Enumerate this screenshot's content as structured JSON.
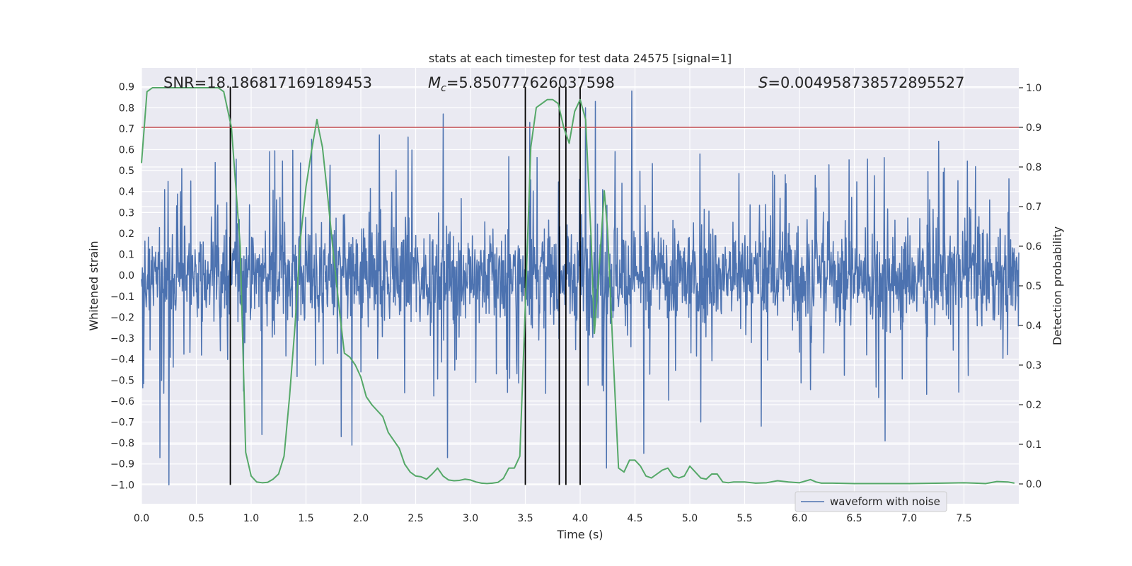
{
  "chart_data": {
    "type": "line",
    "title": "stats at each timestep for test data 24575 [signal=1]",
    "xlabel": "Time (s)",
    "ylabel": "Whitened strain",
    "y2label": "Detection probability",
    "xlim": [
      0.0,
      8.0
    ],
    "ylim": [
      -1.09,
      0.99
    ],
    "y2lim": [
      -0.05,
      1.05
    ],
    "xticks": [
      0.0,
      0.5,
      1.0,
      1.5,
      2.0,
      2.5,
      3.0,
      3.5,
      4.0,
      4.5,
      5.0,
      5.5,
      6.0,
      6.5,
      7.0,
      7.5
    ],
    "xtick_labels": [
      "0.0",
      "0.5",
      "1.0",
      "1.5",
      "2.0",
      "2.5",
      "3.0",
      "3.5",
      "4.0",
      "4.5",
      "5.0",
      "5.5",
      "6.0",
      "6.5",
      "7.0",
      "7.5"
    ],
    "yticks": [
      0.9,
      0.8,
      0.7,
      0.6,
      0.5,
      0.4,
      0.3,
      0.2,
      0.1,
      0.0,
      -0.1,
      -0.2,
      -0.3,
      -0.4,
      -0.5,
      -0.6,
      -0.7,
      -0.8,
      -0.9,
      -1.0
    ],
    "ytick_labels": [
      "0.9",
      "0.8",
      "0.7",
      "0.6",
      "0.5",
      "0.4",
      "0.3",
      "0.2",
      "0.1",
      "0.0",
      "−0.1",
      "−0.2",
      "−0.3",
      "−0.4",
      "−0.5",
      "−0.6",
      "−0.7",
      "−0.8",
      "−0.9",
      "−1.0"
    ],
    "y2ticks": [
      1.0,
      0.9,
      0.8,
      0.7,
      0.6,
      0.5,
      0.4,
      0.3,
      0.2,
      0.1,
      0.0
    ],
    "y2tick_labels": [
      "1.0",
      "0.9",
      "0.8",
      "0.7",
      "0.6",
      "0.5",
      "0.4",
      "0.3",
      "0.2",
      "0.1",
      "0.0"
    ],
    "annotations": {
      "snr_text": "SNR=18.186817169189453",
      "mc_symbol": "M",
      "mc_subscript": "c",
      "mc_value": "=5.850777626037598",
      "s_symbol": "S",
      "s_value": "=0.004958738572895527"
    },
    "threshold": {
      "value": 0.9,
      "axis": "y2",
      "color": "#c44e52"
    },
    "vertical_lines": {
      "x": [
        0.81,
        3.5,
        3.81,
        3.87,
        4.0
      ],
      "y_range": [
        -1.0,
        0.9
      ],
      "color": "#000000"
    },
    "legend": {
      "entries": [
        "waveform with noise"
      ],
      "location": "lower-right"
    },
    "waveform": {
      "name": "waveform with noise",
      "color": "#4c72b0",
      "t_start": 0.0,
      "t_end": 8.0,
      "samples": 2048,
      "envelope_typical": 0.5,
      "spikes": [
        {
          "t": 0.17,
          "y": -0.87
        },
        {
          "t": 0.25,
          "y": -1.0
        },
        {
          "t": 1.1,
          "y": -0.76
        },
        {
          "t": 1.55,
          "y": 0.65
        },
        {
          "t": 1.82,
          "y": -0.77
        },
        {
          "t": 1.92,
          "y": -0.81
        },
        {
          "t": 2.17,
          "y": 0.67
        },
        {
          "t": 2.43,
          "y": 0.66
        },
        {
          "t": 2.75,
          "y": 0.77
        },
        {
          "t": 2.79,
          "y": -0.87
        },
        {
          "t": 3.54,
          "y": 0.73
        },
        {
          "t": 4.05,
          "y": 0.8
        },
        {
          "t": 4.14,
          "y": 0.83
        },
        {
          "t": 4.24,
          "y": -0.92
        },
        {
          "t": 4.47,
          "y": 0.88
        },
        {
          "t": 4.58,
          "y": -0.85
        },
        {
          "t": 5.1,
          "y": -0.7
        },
        {
          "t": 5.65,
          "y": -0.72
        },
        {
          "t": 6.78,
          "y": -0.79
        },
        {
          "t": 7.27,
          "y": 0.64
        }
      ]
    },
    "series": [
      {
        "name": "detection probability",
        "axis": "y2",
        "color": "#55a868",
        "x": [
          0.0,
          0.05,
          0.1,
          0.15,
          0.2,
          0.3,
          0.4,
          0.5,
          0.6,
          0.7,
          0.75,
          0.82,
          0.9,
          0.95,
          1.0,
          1.05,
          1.1,
          1.15,
          1.2,
          1.25,
          1.3,
          1.35,
          1.4,
          1.45,
          1.5,
          1.55,
          1.6,
          1.62,
          1.65,
          1.7,
          1.75,
          1.8,
          1.85,
          1.9,
          1.95,
          2.0,
          2.05,
          2.1,
          2.2,
          2.25,
          2.3,
          2.35,
          2.4,
          2.45,
          2.5,
          2.55,
          2.6,
          2.65,
          2.7,
          2.75,
          2.8,
          2.85,
          2.9,
          2.95,
          3.0,
          3.05,
          3.1,
          3.15,
          3.2,
          3.25,
          3.3,
          3.35,
          3.4,
          3.45,
          3.5,
          3.55,
          3.6,
          3.65,
          3.7,
          3.75,
          3.8,
          3.85,
          3.9,
          3.95,
          4.0,
          4.05,
          4.1,
          4.13,
          4.18,
          4.22,
          4.25,
          4.3,
          4.35,
          4.4,
          4.45,
          4.5,
          4.55,
          4.6,
          4.65,
          4.7,
          4.75,
          4.8,
          4.85,
          4.9,
          4.95,
          5.0,
          5.05,
          5.1,
          5.15,
          5.2,
          5.25,
          5.3,
          5.35,
          5.4,
          5.45,
          5.5,
          5.6,
          5.7,
          5.8,
          5.9,
          6.0,
          6.1,
          6.15,
          6.2,
          6.3,
          6.5,
          6.7,
          7.0,
          7.3,
          7.5,
          7.6,
          7.7,
          7.8,
          7.9,
          7.96
        ],
        "y": [
          0.81,
          0.99,
          1.0,
          1.0,
          1.0,
          1.0,
          1.0,
          1.0,
          1.0,
          1.0,
          0.99,
          0.9,
          0.6,
          0.08,
          0.02,
          0.005,
          0.003,
          0.004,
          0.012,
          0.025,
          0.07,
          0.22,
          0.4,
          0.62,
          0.75,
          0.84,
          0.92,
          0.89,
          0.85,
          0.72,
          0.58,
          0.45,
          0.33,
          0.32,
          0.3,
          0.27,
          0.22,
          0.2,
          0.17,
          0.13,
          0.11,
          0.09,
          0.05,
          0.03,
          0.02,
          0.018,
          0.012,
          0.025,
          0.04,
          0.02,
          0.01,
          0.008,
          0.009,
          0.012,
          0.01,
          0.005,
          0.002,
          0.001,
          0.002,
          0.004,
          0.014,
          0.04,
          0.04,
          0.07,
          0.45,
          0.85,
          0.95,
          0.96,
          0.97,
          0.97,
          0.96,
          0.9,
          0.86,
          0.94,
          0.97,
          0.92,
          0.62,
          0.38,
          0.57,
          0.74,
          0.64,
          0.33,
          0.04,
          0.03,
          0.06,
          0.06,
          0.045,
          0.02,
          0.015,
          0.025,
          0.035,
          0.04,
          0.02,
          0.015,
          0.02,
          0.045,
          0.03,
          0.015,
          0.012,
          0.025,
          0.025,
          0.005,
          0.003,
          0.005,
          0.005,
          0.005,
          0.002,
          0.003,
          0.008,
          0.005,
          0.003,
          0.011,
          0.005,
          0.002,
          0.002,
          0.001,
          0.001,
          0.001,
          0.002,
          0.003,
          0.002,
          0.001,
          0.006,
          0.005,
          0.002
        ]
      }
    ]
  }
}
